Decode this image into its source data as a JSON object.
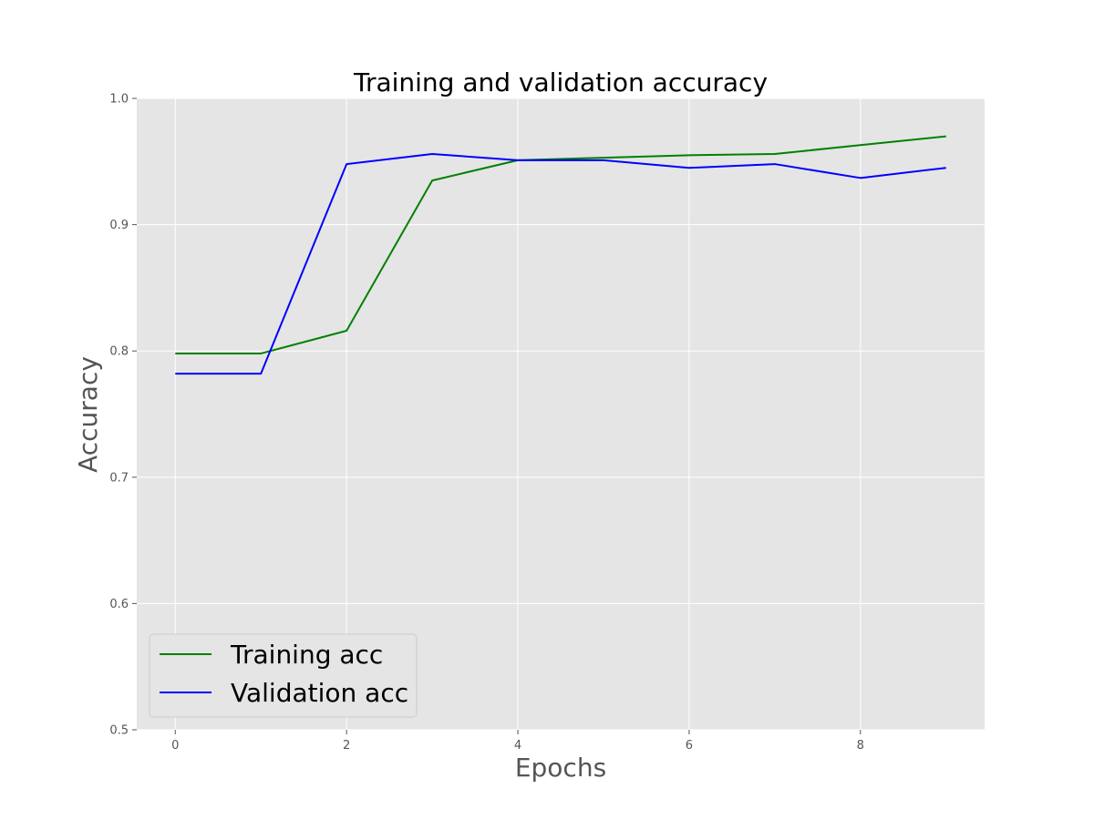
{
  "chart_data": {
    "type": "line",
    "title": "Training and validation accuracy",
    "xlabel": "Epochs",
    "ylabel": "Accuracy",
    "x": [
      0,
      1,
      2,
      3,
      4,
      5,
      6,
      7,
      8,
      9
    ],
    "xlim": [
      -0.45,
      9.45
    ],
    "ylim": [
      0.5,
      1.0
    ],
    "xticks": [
      0,
      2,
      4,
      6,
      8
    ],
    "yticks": [
      0.5,
      0.6,
      0.7,
      0.8,
      0.9,
      1.0
    ],
    "xtick_labels": [
      "0",
      "2",
      "4",
      "6",
      "8"
    ],
    "ytick_labels": [
      "0.5",
      "0.6",
      "0.7",
      "0.8",
      "0.9",
      "1.0"
    ],
    "grid": true,
    "legend_position": "lower-left",
    "background_color": "#e5e5e5",
    "series": [
      {
        "name": "Training acc",
        "color": "#008000",
        "values": [
          0.798,
          0.798,
          0.816,
          0.935,
          0.951,
          0.953,
          0.955,
          0.956,
          0.963,
          0.97
        ]
      },
      {
        "name": "Validation acc",
        "color": "#0000ff",
        "values": [
          0.782,
          0.782,
          0.948,
          0.956,
          0.951,
          0.951,
          0.945,
          0.948,
          0.937,
          0.945
        ]
      }
    ]
  }
}
